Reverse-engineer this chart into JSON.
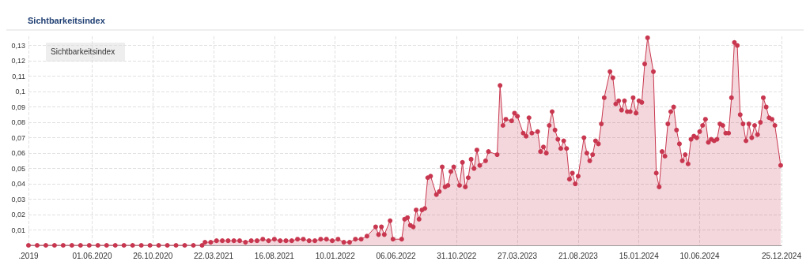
{
  "chart_data": {
    "type": "area",
    "title": "Sichtbarkeitsindex",
    "legend_title": "Sichtbarkeitsindex",
    "color": "#c8374f",
    "marker": "circle",
    "grid": true,
    "line_style": "solid",
    "xlim": [
      "2019-12-30",
      "2024-12-25"
    ],
    "xticks": [
      {
        "value": "2019-12-30",
        "label": ".2019"
      },
      {
        "value": "2020-06-01",
        "label": "01.06.2020"
      },
      {
        "value": "2020-10-26",
        "label": "26.10.2020"
      },
      {
        "value": "2021-03-22",
        "label": "22.03.2021"
      },
      {
        "value": "2021-08-16",
        "label": "16.08.2021"
      },
      {
        "value": "2022-01-10",
        "label": "10.01.2022"
      },
      {
        "value": "2022-06-06",
        "label": "06.06.2022"
      },
      {
        "value": "2022-10-31",
        "label": "31.10.2022"
      },
      {
        "value": "2023-03-27",
        "label": "27.03.2023"
      },
      {
        "value": "2023-08-21",
        "label": "21.08.2023"
      },
      {
        "value": "2024-01-15",
        "label": "15.01.2024"
      },
      {
        "value": "2024-06-10",
        "label": "10.06.2024"
      },
      {
        "value": "2024-12-25",
        "label": "25.12.2024"
      }
    ],
    "ylim": [
      0,
      0.136
    ],
    "yticks": [
      {
        "value": 0.01,
        "label": "0,01"
      },
      {
        "value": 0.02,
        "label": "0,02"
      },
      {
        "value": 0.03,
        "label": "0,03"
      },
      {
        "value": 0.04,
        "label": "0,04"
      },
      {
        "value": 0.05,
        "label": "0,05"
      },
      {
        "value": 0.06,
        "label": "0,06"
      },
      {
        "value": 0.07,
        "label": "0,07"
      },
      {
        "value": 0.08,
        "label": "0,08"
      },
      {
        "value": 0.09,
        "label": "0,09"
      },
      {
        "value": 0.1,
        "label": "0,1"
      },
      {
        "value": 0.11,
        "label": "0,11"
      },
      {
        "value": 0.12,
        "label": "0,12"
      },
      {
        "value": 0.13,
        "label": "0,13"
      }
    ],
    "x": [
      "2019-12-30",
      "2020-01-20",
      "2020-02-10",
      "2020-03-02",
      "2020-03-23",
      "2020-04-13",
      "2020-05-04",
      "2020-05-25",
      "2020-06-15",
      "2020-07-06",
      "2020-07-27",
      "2020-08-17",
      "2020-09-07",
      "2020-09-28",
      "2020-10-19",
      "2020-11-09",
      "2020-11-30",
      "2020-12-21",
      "2021-01-11",
      "2021-02-01",
      "2021-02-22",
      "2021-03-01",
      "2021-03-15",
      "2021-03-29",
      "2021-04-12",
      "2021-04-26",
      "2021-05-10",
      "2021-05-24",
      "2021-06-07",
      "2021-06-21",
      "2021-07-05",
      "2021-07-19",
      "2021-08-02",
      "2021-08-16",
      "2021-08-30",
      "2021-09-13",
      "2021-09-27",
      "2021-10-11",
      "2021-10-25",
      "2021-11-08",
      "2021-11-22",
      "2021-12-06",
      "2021-12-20",
      "2022-01-03",
      "2022-01-17",
      "2022-01-31",
      "2022-02-14",
      "2022-02-28",
      "2022-03-14",
      "2022-03-28",
      "2022-04-18",
      "2022-04-25",
      "2022-05-02",
      "2022-05-09",
      "2022-05-23",
      "2022-05-30",
      "2022-06-20",
      "2022-06-27",
      "2022-07-04",
      "2022-07-11",
      "2022-07-18",
      "2022-07-25",
      "2022-08-01",
      "2022-08-08",
      "2022-08-15",
      "2022-08-22",
      "2022-08-29",
      "2022-09-12",
      "2022-09-19",
      "2022-09-26",
      "2022-10-03",
      "2022-10-10",
      "2022-10-17",
      "2022-10-24",
      "2022-11-07",
      "2022-11-14",
      "2022-11-21",
      "2022-11-28",
      "2022-12-05",
      "2022-12-12",
      "2022-12-19",
      "2022-12-26",
      "2023-01-09",
      "2023-01-16",
      "2023-02-06",
      "2023-02-13",
      "2023-02-20",
      "2023-02-27",
      "2023-03-13",
      "2023-03-20",
      "2023-03-27",
      "2023-04-10",
      "2023-04-17",
      "2023-04-24",
      "2023-05-01",
      "2023-05-15",
      "2023-05-22",
      "2023-05-29",
      "2023-06-05",
      "2023-06-12",
      "2023-06-19",
      "2023-06-26",
      "2023-07-03",
      "2023-07-10",
      "2023-07-17",
      "2023-07-24",
      "2023-07-31",
      "2023-08-07",
      "2023-08-14",
      "2023-08-21",
      "2023-09-04",
      "2023-09-11",
      "2023-09-18",
      "2023-09-25",
      "2023-10-02",
      "2023-10-09",
      "2023-10-16",
      "2023-10-23",
      "2023-11-06",
      "2023-11-13",
      "2023-11-20",
      "2023-11-27",
      "2023-12-04",
      "2023-12-11",
      "2023-12-18",
      "2023-12-25",
      "2024-01-01",
      "2024-01-08",
      "2024-01-15",
      "2024-01-22",
      "2024-01-29",
      "2024-02-05",
      "2024-02-19",
      "2024-02-26",
      "2024-03-04",
      "2024-03-11",
      "2024-03-18",
      "2024-03-25",
      "2024-04-01",
      "2024-04-08",
      "2024-04-15",
      "2024-04-22",
      "2024-04-29",
      "2024-05-06",
      "2024-05-13",
      "2024-05-20",
      "2024-05-27",
      "2024-06-03",
      "2024-06-10",
      "2024-06-17",
      "2024-06-24",
      "2024-07-01",
      "2024-07-08",
      "2024-07-15",
      "2024-07-22",
      "2024-07-29",
      "2024-08-05",
      "2024-08-12",
      "2024-08-19",
      "2024-08-26",
      "2024-09-02",
      "2024-09-09",
      "2024-09-16",
      "2024-09-23",
      "2024-09-30",
      "2024-10-07",
      "2024-10-14",
      "2024-10-21",
      "2024-10-28",
      "2024-11-04",
      "2024-11-11",
      "2024-11-18",
      "2024-11-25",
      "2024-12-02",
      "2024-12-09",
      "2024-12-23"
    ],
    "values": [
      0,
      0,
      0,
      0,
      0,
      0,
      0,
      0,
      0,
      0,
      0,
      0,
      0,
      0,
      0,
      0,
      0,
      0,
      0,
      0,
      0,
      0.002,
      0.002,
      0.003,
      0.003,
      0.003,
      0.003,
      0.003,
      0.002,
      0.003,
      0.003,
      0.004,
      0.003,
      0.004,
      0.003,
      0.003,
      0.003,
      0.004,
      0.004,
      0.003,
      0.003,
      0.004,
      0.004,
      0.003,
      0.004,
      0.002,
      0.002,
      0.004,
      0.004,
      0.006,
      0.012,
      0.007,
      0.012,
      0.007,
      0.016,
      0.004,
      0.004,
      0.017,
      0.018,
      0.013,
      0.012,
      0.023,
      0.017,
      0.023,
      0.024,
      0.044,
      0.045,
      0.033,
      0.035,
      0.051,
      0.038,
      0.039,
      0.048,
      0.051,
      0.039,
      0.054,
      0.038,
      0.044,
      0.056,
      0.05,
      0.062,
      0.052,
      0.055,
      0.061,
      0.059,
      0.104,
      0.078,
      0.082,
      0.081,
      0.086,
      0.084,
      0.073,
      0.071,
      0.083,
      0.073,
      0.074,
      0.061,
      0.064,
      0.06,
      0.078,
      0.087,
      0.075,
      0.069,
      0.063,
      0.068,
      0.063,
      0.043,
      0.047,
      0.04,
      0.045,
      0.07,
      0.06,
      0.055,
      0.059,
      0.068,
      0.066,
      0.079,
      0.096,
      0.113,
      0.109,
      0.092,
      0.094,
      0.088,
      0.094,
      0.087,
      0.087,
      0.096,
      0.086,
      0.094,
      0.093,
      0.118,
      0.135,
      0.113,
      0.047,
      0.038,
      0.061,
      0.058,
      0.079,
      0.087,
      0.09,
      0.075,
      0.066,
      0.055,
      0.059,
      0.053,
      0.069,
      0.071,
      0.07,
      0.074,
      0.078,
      0.082,
      0.067,
      0.069,
      0.068,
      0.069,
      0.079,
      0.078,
      0.073,
      0.073,
      0.096,
      0.132,
      0.13,
      0.085,
      0.079,
      0.068,
      0.079,
      0.07,
      0.078,
      0.072,
      0.08,
      0.096,
      0.09,
      0.083,
      0.082,
      0.078,
      0.052
    ]
  }
}
